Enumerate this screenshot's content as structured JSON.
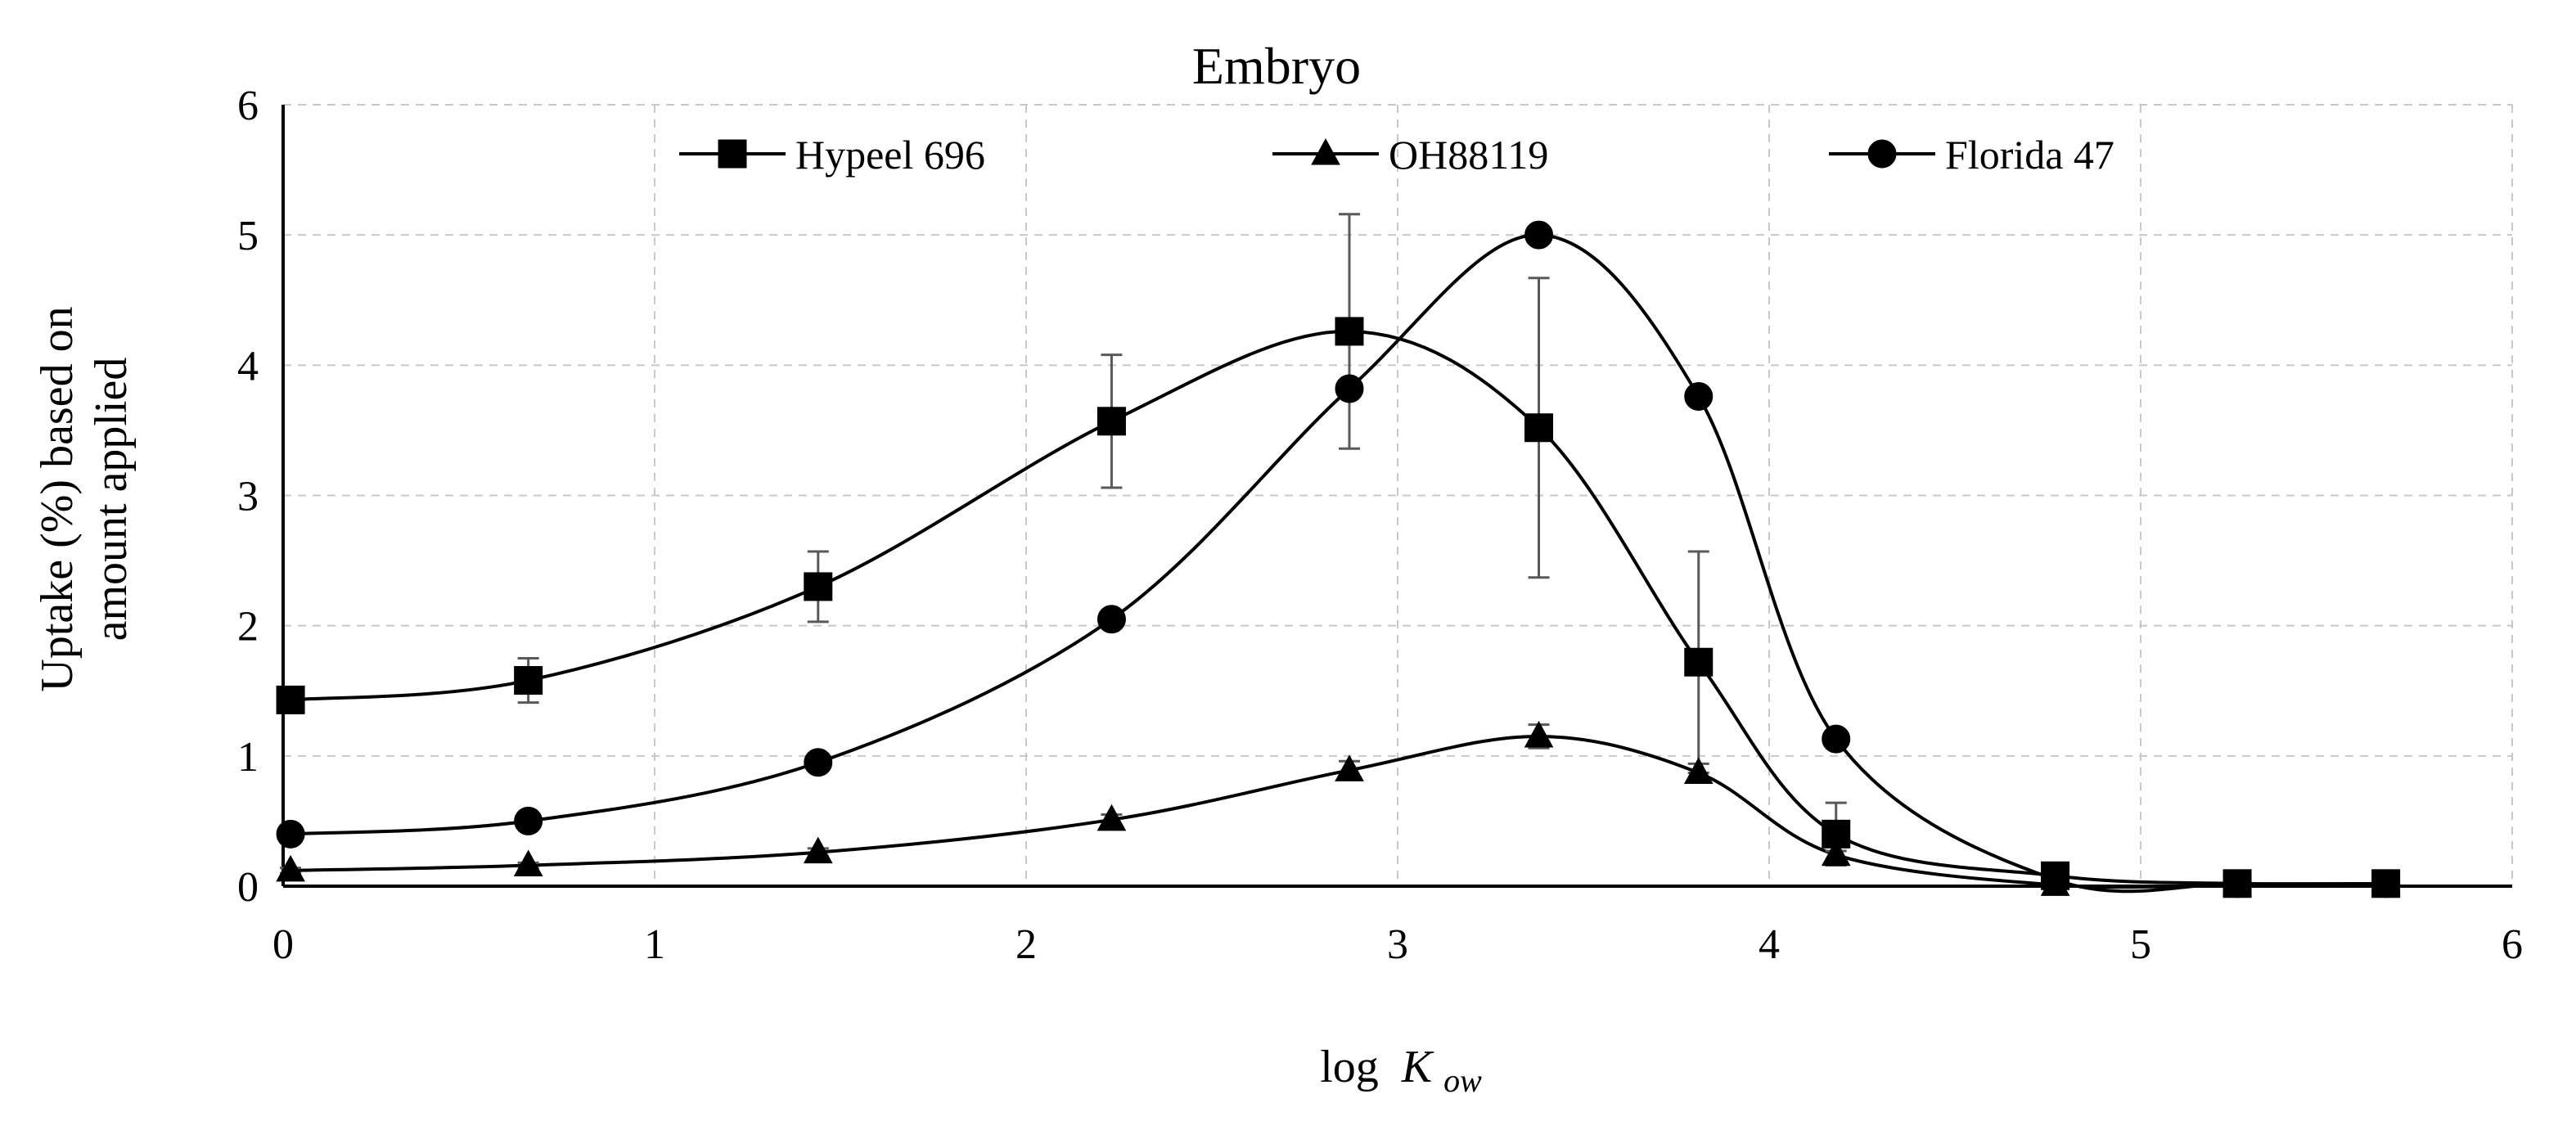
{
  "chart_data": {
    "type": "line",
    "title": "Embryo",
    "xlabel": "log",
    "xlabel_italic": "K",
    "xlabel_sub": "ow",
    "ylabel_line1": "Uptake (%) based on",
    "ylabel_line2": "amount applied",
    "xlim": [
      0,
      6
    ],
    "ylim": [
      0,
      6
    ],
    "xticks": [
      0,
      1,
      2,
      3,
      4,
      5,
      6
    ],
    "yticks": [
      0,
      1,
      2,
      3,
      4,
      5,
      6
    ],
    "grid": true,
    "legend_position": "top",
    "x": [
      0.02,
      0.66,
      1.44,
      2.23,
      2.87,
      3.38,
      3.81,
      4.18,
      4.77,
      5.26,
      5.66
    ],
    "series": [
      {
        "name": "Hypeel 696",
        "marker": "square",
        "values": [
          1.43,
          1.58,
          2.3,
          3.57,
          4.26,
          3.52,
          1.72,
          0.4,
          0.08,
          0.02,
          0.02
        ],
        "errors": [
          0.1,
          0.17,
          0.27,
          0.51,
          0.9,
          1.15,
          0.85,
          0.24,
          0.03,
          0.01,
          0.01
        ]
      },
      {
        "name": "OH88119",
        "marker": "triangle",
        "values": [
          0.12,
          0.16,
          0.26,
          0.51,
          0.89,
          1.15,
          0.87,
          0.24,
          0.01,
          0.01,
          0.01
        ],
        "errors": [
          0.02,
          0.02,
          0.03,
          0.04,
          0.07,
          0.09,
          0.07,
          0.03,
          0.0,
          0.0,
          0.0
        ]
      },
      {
        "name": "Florida 47",
        "marker": "circle",
        "values": [
          0.4,
          0.5,
          0.95,
          2.05,
          3.82,
          5.0,
          3.76,
          1.13,
          0.05,
          0.02,
          0.02
        ],
        "errors": [
          0,
          0,
          0,
          0,
          0,
          0,
          0,
          0,
          0,
          0,
          0
        ]
      }
    ]
  }
}
